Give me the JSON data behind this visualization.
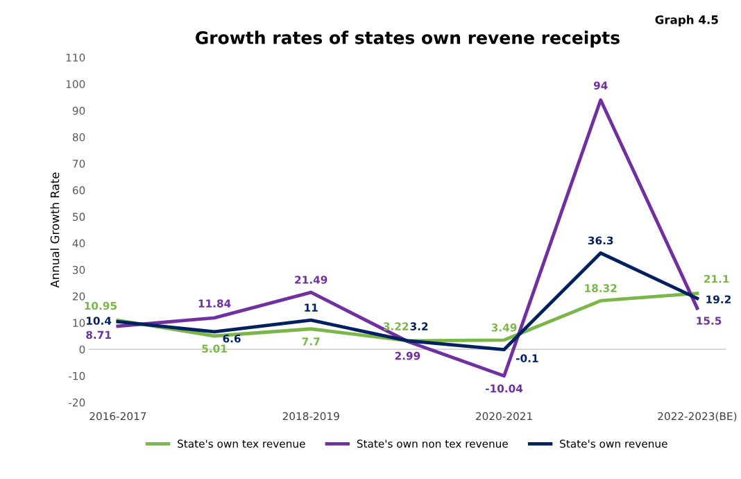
{
  "chart_data": {
    "type": "line",
    "title": "Growth rates of states own revene receipts",
    "ylabel": "Annual Growth Rate",
    "annotations": [
      "Graph 4.5"
    ],
    "categories": [
      "2016-2017",
      null,
      "2018-2019",
      null,
      "2020-2021",
      null,
      "2022-2023(BE)"
    ],
    "series": [
      {
        "name": "State's own tex revenue",
        "color": "#7ab648",
        "values": [
          10.95,
          5.01,
          7.7,
          3.22,
          3.49,
          18.32,
          21.1
        ]
      },
      {
        "name": "State's own non tex revenue",
        "color": "#7030a0",
        "values": [
          8.71,
          11.84,
          21.49,
          2.99,
          -10.04,
          94,
          15.5
        ]
      },
      {
        "name": "State's own revenue",
        "color": "#002060",
        "values": [
          10.4,
          6.6,
          11,
          3.2,
          -0.1,
          36.3,
          19.2
        ]
      }
    ],
    "ylim": [
      -20,
      110
    ],
    "yticks": [
      -20,
      -10,
      0,
      10,
      20,
      30,
      40,
      50,
      60,
      70,
      80,
      90,
      100,
      110
    ],
    "ref_lines": [
      {
        "axis": "y",
        "value": 0,
        "color": "#bfbfbf",
        "line_style": "solid"
      }
    ],
    "data_labels": true,
    "legend": "bottom",
    "grid": false,
    "marker": "none",
    "line_style": "solid"
  }
}
